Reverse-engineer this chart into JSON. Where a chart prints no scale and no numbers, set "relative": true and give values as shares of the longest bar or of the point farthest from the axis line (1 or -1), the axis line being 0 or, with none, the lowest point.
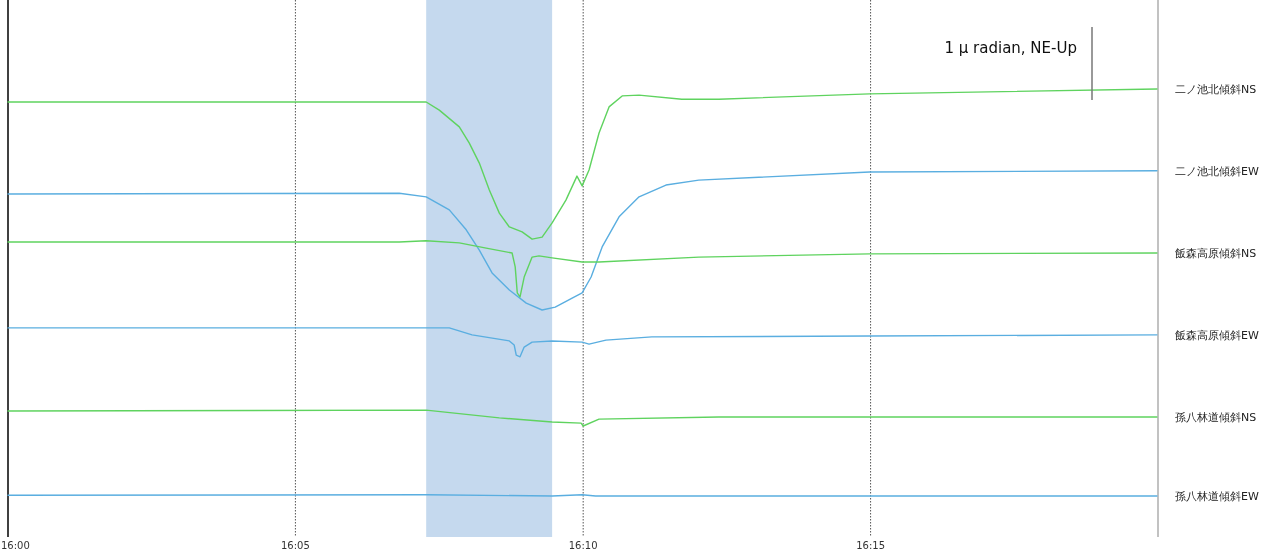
{
  "chart_data": {
    "type": "line",
    "relative": true,
    "grid": "x",
    "tick_labels": "x",
    "xlim": [
      16,
      16.3333
    ],
    "xticks": [
      {
        "value": 16,
        "label": "16:00"
      },
      {
        "value": 16.0833,
        "label": "16:05"
      },
      {
        "value": 16.1667,
        "label": "16:10"
      },
      {
        "value": 16.25,
        "label": "16:15"
      }
    ],
    "bands": [
      {
        "axis": "x",
        "from": 16.1212,
        "to": 16.1577,
        "color": "#c5d9ee"
      }
    ],
    "annotations": [
      "1 μ radian, NE-Up"
    ],
    "series": [
      {
        "name": "二ノ池北傾斜NS",
        "color": "#5fd35f",
        "x": [
          16,
          16.1212,
          16.125,
          16.1308,
          16.1337,
          16.1366,
          16.1395,
          16.1424,
          16.1453,
          16.149,
          16.1519,
          16.1548,
          16.1577,
          16.1617,
          16.1649,
          16.1664,
          16.1684,
          16.1713,
          16.1742,
          16.178,
          16.1829,
          16.1953,
          16.206,
          16.2497,
          16.333
        ],
        "values": [
          0.968,
          0.968,
          0.948,
          0.907,
          0.867,
          0.818,
          0.752,
          0.695,
          0.661,
          0.649,
          0.631,
          0.636,
          0.671,
          0.727,
          0.786,
          0.762,
          0.801,
          0.892,
          0.956,
          0.983,
          0.985,
          0.975,
          0.975,
          0.988,
          1
        ]
      },
      {
        "name": "二ノ池北傾斜EW",
        "color": "#5aaee0",
        "x": [
          16,
          16.1134,
          16.1212,
          16.1279,
          16.1328,
          16.1366,
          16.1403,
          16.1453,
          16.1502,
          16.1548,
          16.1586,
          16.1635,
          16.1664,
          16.169,
          16.1722,
          16.1771,
          16.1829,
          16.1907,
          16.2002,
          16.2497,
          16.333
        ],
        "values": [
          0.742,
          0.744,
          0.735,
          0.703,
          0.654,
          0.604,
          0.548,
          0.506,
          0.474,
          0.457,
          0.464,
          0.486,
          0.499,
          0.538,
          0.612,
          0.686,
          0.735,
          0.764,
          0.776,
          0.796,
          0.799
        ]
      },
      {
        "name": "飯森高原傾斜NS",
        "color": "#5fd35f",
        "x": [
          16,
          16.1134,
          16.1212,
          16.1308,
          16.1386,
          16.1461,
          16.147,
          16.1476,
          16.1484,
          16.1496,
          16.1519,
          16.1539,
          16.1577,
          16.1664,
          16.1713,
          16.2002,
          16.2497,
          16.333
        ],
        "values": [
          0.624,
          0.624,
          0.627,
          0.622,
          0.609,
          0.597,
          0.563,
          0.499,
          0.489,
          0.538,
          0.587,
          0.59,
          0.585,
          0.575,
          0.575,
          0.587,
          0.595,
          0.597
        ]
      },
      {
        "name": "飯森高原傾斜EW",
        "color": "#5aaee0",
        "x": [
          16,
          16.1134,
          16.1279,
          16.1345,
          16.1453,
          16.1467,
          16.1473,
          16.1484,
          16.1496,
          16.1519,
          16.1577,
          16.1664,
          16.1684,
          16.1733,
          16.1866,
          16.2497,
          16.333
        ],
        "values": [
          0.413,
          0.413,
          0.413,
          0.396,
          0.381,
          0.371,
          0.346,
          0.342,
          0.366,
          0.378,
          0.381,
          0.378,
          0.373,
          0.383,
          0.391,
          0.393,
          0.396
        ]
      },
      {
        "name": "孫八林道傾斜NS",
        "color": "#5fd35f",
        "x": [
          16,
          16.1212,
          16.1424,
          16.1577,
          16.1661,
          16.1667,
          16.1713,
          16.206,
          16.333
        ],
        "values": [
          0.209,
          0.211,
          0.192,
          0.182,
          0.179,
          0.172,
          0.189,
          0.194,
          0.194
        ]
      },
      {
        "name": "孫八林道傾斜EW",
        "color": "#5aaee0",
        "x": [
          16,
          16.1212,
          16.1577,
          16.1664,
          16.1703,
          16.333
        ],
        "values": [
          0.002,
          0.003,
          0,
          0.003,
          0,
          0
        ]
      }
    ]
  }
}
